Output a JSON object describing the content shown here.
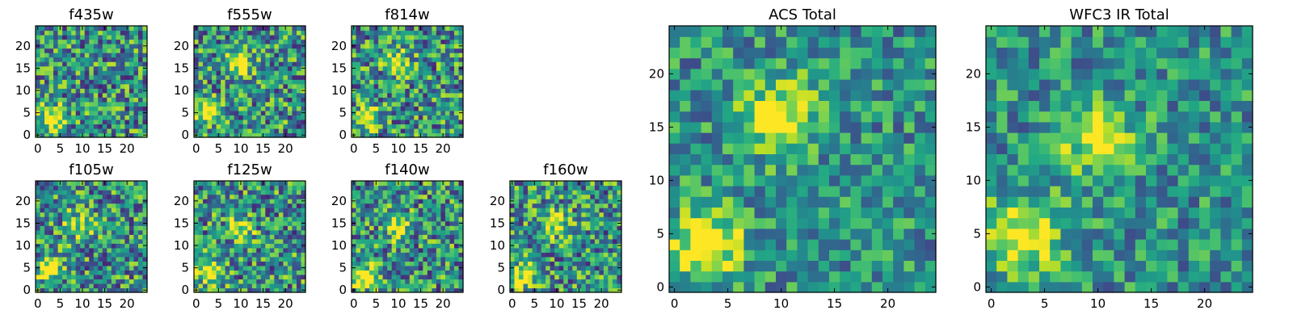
{
  "colormap": "viridis",
  "chart_data": [
    {
      "type": "heatmap",
      "title": "f435w",
      "grid_size": [
        25,
        25
      ],
      "xlim": [
        0,
        24
      ],
      "ylim": [
        0,
        24
      ],
      "xticks": [
        0,
        5,
        10,
        15,
        20
      ],
      "yticks": [
        0,
        5,
        10,
        15,
        20
      ],
      "peaks": [
        {
          "x": 3,
          "y": 4,
          "level": 1.0
        }
      ]
    },
    {
      "type": "heatmap",
      "title": "f555w",
      "grid_size": [
        25,
        25
      ],
      "xlim": [
        0,
        24
      ],
      "ylim": [
        0,
        24
      ],
      "xticks": [
        0,
        5,
        10,
        15,
        20
      ],
      "yticks": [
        0,
        5,
        10,
        15,
        20
      ],
      "peaks": [
        {
          "x": 3,
          "y": 5,
          "level": 1.0
        },
        {
          "x": 10,
          "y": 16,
          "level": 0.8
        }
      ]
    },
    {
      "type": "heatmap",
      "title": "f814w",
      "grid_size": [
        25,
        25
      ],
      "xlim": [
        0,
        24
      ],
      "ylim": [
        0,
        24
      ],
      "xticks": [
        0,
        5,
        10,
        15,
        20
      ],
      "yticks": [
        0,
        5,
        10,
        15,
        20
      ],
      "peaks": [
        {
          "x": 3,
          "y": 4,
          "level": 1.0
        },
        {
          "x": 10,
          "y": 16,
          "level": 0.9
        }
      ]
    },
    {
      "type": "heatmap",
      "title": "f105w",
      "grid_size": [
        25,
        25
      ],
      "xlim": [
        0,
        24
      ],
      "ylim": [
        0,
        24
      ],
      "xticks": [
        0,
        5,
        10,
        15,
        20
      ],
      "yticks": [
        0,
        5,
        10,
        15,
        20
      ],
      "peaks": [
        {
          "x": 3,
          "y": 5,
          "level": 1.0
        },
        {
          "x": 9,
          "y": 15,
          "level": 0.75
        }
      ]
    },
    {
      "type": "heatmap",
      "title": "f125w",
      "grid_size": [
        25,
        25
      ],
      "xlim": [
        0,
        24
      ],
      "ylim": [
        0,
        24
      ],
      "xticks": [
        0,
        5,
        10,
        15,
        20
      ],
      "yticks": [
        0,
        5,
        10,
        15,
        20
      ],
      "peaks": [
        {
          "x": 3,
          "y": 4,
          "level": 0.95
        },
        {
          "x": 10,
          "y": 14,
          "level": 0.8
        }
      ]
    },
    {
      "type": "heatmap",
      "title": "f140w",
      "grid_size": [
        25,
        25
      ],
      "xlim": [
        0,
        24
      ],
      "ylim": [
        0,
        24
      ],
      "xticks": [
        0,
        5,
        10,
        15,
        20
      ],
      "yticks": [
        0,
        5,
        10,
        15,
        20
      ],
      "peaks": [
        {
          "x": 3,
          "y": 3,
          "level": 0.95
        },
        {
          "x": 10,
          "y": 14,
          "level": 0.85
        }
      ]
    },
    {
      "type": "heatmap",
      "title": "f160w",
      "grid_size": [
        25,
        25
      ],
      "xlim": [
        0,
        24
      ],
      "ylim": [
        0,
        24
      ],
      "xticks": [
        0,
        5,
        10,
        15,
        20
      ],
      "yticks": [
        0,
        5,
        10,
        15,
        20
      ],
      "peaks": [
        {
          "x": 3,
          "y": 4,
          "level": 1.0
        },
        {
          "x": 10,
          "y": 15,
          "level": 0.8
        }
      ]
    },
    {
      "type": "heatmap",
      "title": "ACS Total",
      "grid_size": [
        25,
        25
      ],
      "xlim": [
        0,
        24
      ],
      "ylim": [
        0,
        24
      ],
      "xticks": [
        0,
        5,
        10,
        15,
        20
      ],
      "yticks": [
        0,
        5,
        10,
        15,
        20
      ],
      "peaks": [
        {
          "x": 3,
          "y": 4,
          "level": 1.0
        },
        {
          "x": 10,
          "y": 16,
          "level": 0.95
        }
      ]
    },
    {
      "type": "heatmap",
      "title": "WFC3 IR Total",
      "grid_size": [
        25,
        25
      ],
      "xlim": [
        0,
        24
      ],
      "ylim": [
        0,
        24
      ],
      "xticks": [
        0,
        5,
        10,
        15,
        20
      ],
      "yticks": [
        0,
        5,
        10,
        15,
        20
      ],
      "peaks": [
        {
          "x": 3,
          "y": 5,
          "level": 1.0
        },
        {
          "x": 10,
          "y": 14,
          "level": 0.85
        }
      ]
    }
  ]
}
